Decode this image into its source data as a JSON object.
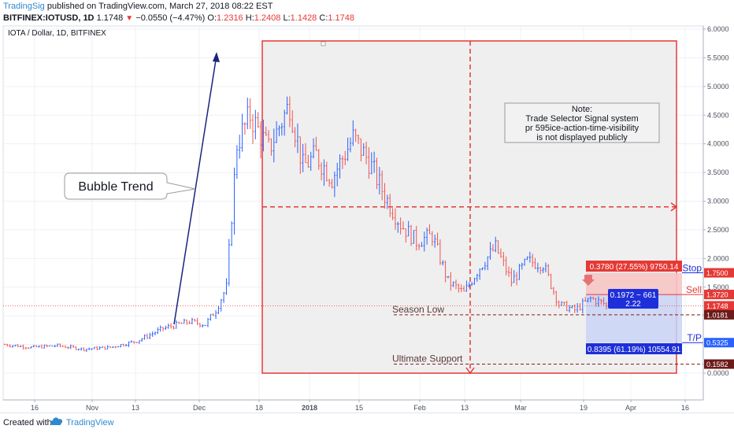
{
  "header": {
    "author": "TradingSig",
    "published": "published on TradingView.com, March 27, 2018 08:22 EST",
    "symbol": "BITFINEX:IOTUSD, 1D",
    "last": "1.1748",
    "change": "−0.0550 (−4.47%)",
    "open_label": "O:",
    "open": "1.2316",
    "high_label": "H:",
    "high": "1.2408",
    "low_label": "L:",
    "low": "1.1428",
    "close_label": "C:",
    "close": "1.1748"
  },
  "pane_title": "IOTA / Dollar, 1D, BITFINEX",
  "footer": {
    "created_with": "Created with",
    "brand": "TradingView"
  },
  "colors": {
    "up": "#2962ff",
    "down": "#ef5350",
    "box": "#e53935",
    "box_fill": "#efefef",
    "loss_fill": "#f7c5c5",
    "profit_fill": "#c9d3f5",
    "trend": "#1a237e",
    "support": "#8b1a1a",
    "profit_label": "#1e2fd9",
    "loss_label": "#e53935"
  },
  "annotations": {
    "bubble": "Bubble Trend",
    "note_title": "Note:",
    "note_line1": "Trade Selector Signal system",
    "note_line2": "pr 595ice-action-time-visibility",
    "note_line3": "is not displayed publicly",
    "season_low": "Season Low",
    "ultimate_support": "Ultimate Support",
    "stop": "Stop",
    "sell": "Sell",
    "tp": "T/P",
    "risk_label": "0.3780 (27.55%) 9750.14",
    "ratio_top": "0.1972 ~ 661",
    "ratio_bottom": "2.22",
    "reward_label": "0.8395 (61.19%) 10554.91"
  },
  "chart_data": {
    "type": "candlestick",
    "title": "IOTA / Dollar, 1D, BITFINEX",
    "xlabel": "",
    "ylabel": "",
    "ylim": [
      -0.15,
      6.05
    ],
    "y_ticks": [
      "6.0000",
      "5.5000",
      "5.0000",
      "4.5000",
      "4.0000",
      "3.5000",
      "3.0000",
      "2.5000",
      "2.0000",
      "1.5000",
      "1.0000",
      "0.5000",
      "0.0000"
    ],
    "x_ticks": [
      "16",
      "Nov",
      "13",
      "Dec",
      "18",
      "2018",
      "15",
      "Feb",
      "13",
      "Mar",
      "19",
      "Apr",
      "16"
    ],
    "price_labels": [
      {
        "text": "1.7500",
        "value": 1.75,
        "bg": "#e53935"
      },
      {
        "text": "1.3720",
        "value": 1.372,
        "bg": "#e53935"
      },
      {
        "text": "1.1748",
        "value": 1.1748,
        "bg": "#e53935"
      },
      {
        "text": "1.0181",
        "value": 1.0181,
        "bg": "#6d1a1a"
      },
      {
        "text": "0.5325",
        "value": 0.5325,
        "bg": "#2962ff"
      },
      {
        "text": "0.1582",
        "value": 0.1582,
        "bg": "#6d1a1a"
      }
    ],
    "levels": {
      "stop": 1.75,
      "sell": 1.372,
      "last": 1.1748,
      "season_low": 1.0181,
      "take_profit": 0.5325,
      "ultimate_support": 0.1582,
      "box_mid": 2.9
    },
    "ohlc_anchors": [
      {
        "i": 0,
        "p": 0.5
      },
      {
        "i": 10,
        "p": 0.45
      },
      {
        "i": 20,
        "p": 0.48
      },
      {
        "i": 30,
        "p": 0.42
      },
      {
        "i": 40,
        "p": 0.45
      },
      {
        "i": 50,
        "p": 0.56
      },
      {
        "i": 60,
        "p": 0.78
      },
      {
        "i": 70,
        "p": 0.9
      },
      {
        "i": 76,
        "p": 0.85
      },
      {
        "i": 80,
        "p": 1.1
      },
      {
        "i": 84,
        "p": 1.5
      },
      {
        "i": 88,
        "p": 4.0
      },
      {
        "i": 93,
        "p": 4.5
      },
      {
        "i": 100,
        "p": 3.9
      },
      {
        "i": 108,
        "p": 4.7
      },
      {
        "i": 113,
        "p": 3.6
      },
      {
        "i": 118,
        "p": 3.8
      },
      {
        "i": 124,
        "p": 3.4
      },
      {
        "i": 132,
        "p": 4.1
      },
      {
        "i": 138,
        "p": 3.7
      },
      {
        "i": 144,
        "p": 3.1
      },
      {
        "i": 150,
        "p": 2.6
      },
      {
        "i": 156,
        "p": 2.3
      },
      {
        "i": 162,
        "p": 2.4
      },
      {
        "i": 168,
        "p": 1.6
      },
      {
        "i": 174,
        "p": 1.4
      },
      {
        "i": 180,
        "p": 1.85
      },
      {
        "i": 186,
        "p": 2.2
      },
      {
        "i": 192,
        "p": 1.6
      },
      {
        "i": 198,
        "p": 1.95
      },
      {
        "i": 204,
        "p": 1.9
      },
      {
        "i": 210,
        "p": 1.2
      },
      {
        "i": 216,
        "p": 1.1
      },
      {
        "i": 222,
        "p": 1.3
      },
      {
        "i": 228,
        "p": 1.2
      }
    ]
  }
}
